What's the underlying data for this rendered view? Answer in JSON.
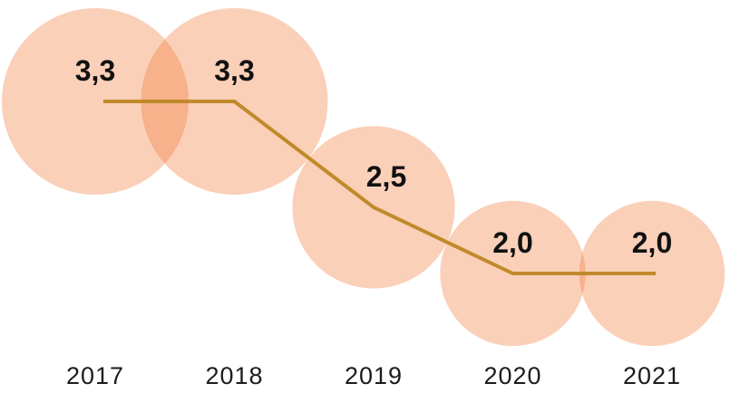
{
  "chart_data": {
    "type": "line",
    "subtype": "bubble-line",
    "categories": [
      "2017",
      "2018",
      "2019",
      "2020",
      "2021"
    ],
    "values": [
      3.3,
      3.3,
      2.5,
      2.0,
      2.0
    ],
    "value_labels": [
      "3,3",
      "3,3",
      "2,5",
      "2,0",
      "2,0"
    ],
    "title": "",
    "xlabel": "",
    "ylabel": "",
    "ylim": [
      0,
      3.5
    ],
    "grid": false,
    "legend": "none",
    "bubble": {
      "color": "#F17937",
      "opacity": 0.35,
      "size_mode": "area-proportional-to-value"
    },
    "line": {
      "color": "#C08A2B",
      "width": 4
    },
    "colors": {
      "value_label": "#111111",
      "year_label": "#1C1C1C",
      "background": "#FFFFFF"
    }
  }
}
